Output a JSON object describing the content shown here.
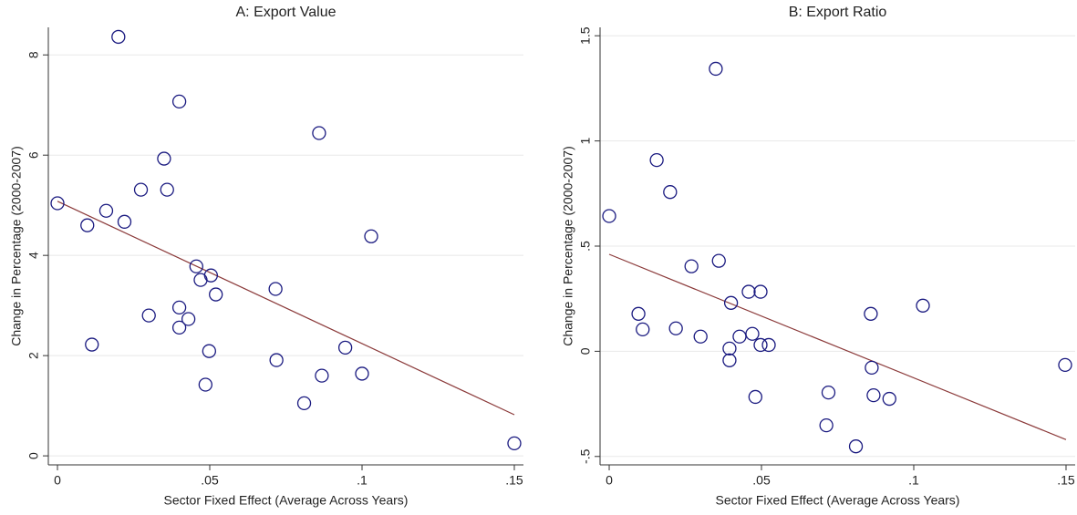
{
  "chart_data": [
    {
      "type": "scatter",
      "title": "A: Export Value",
      "x_label": "Sector Fixed Effect (Average Across Years)",
      "y_label": "Change in Percentage (2000-2007)",
      "xlim": [
        -0.003,
        0.153
      ],
      "ylim": [
        -0.18,
        8.55
      ],
      "xticks": [
        0,
        {
          "value": 0.05,
          "label": ".05"
        },
        {
          "value": 0.1,
          "label": ".1"
        },
        {
          "value": 0.15,
          "label": ".15"
        }
      ],
      "yticks": [
        0,
        2,
        4,
        6,
        8
      ],
      "grid": true,
      "series": [
        {
          "color": "#1a1a80",
          "x": [
            0.02,
            0.04,
            0.0859,
            0.035,
            0.0274,
            0.036,
            0,
            0.016,
            0.022,
            0.0098,
            0.103,
            0.0456,
            0.047,
            0.0504,
            0.0716,
            0.052,
            0.04,
            0.03,
            0.043,
            0.04,
            0.0113,
            0.0498,
            0.0945,
            0.0719,
            0.0868,
            0.1,
            0.0486,
            0.081,
            0.15
          ],
          "values": [
            8.36,
            7.07,
            6.44,
            5.93,
            5.31,
            5.31,
            5.04,
            4.89,
            4.67,
            4.6,
            4.38,
            3.78,
            3.51,
            3.6,
            3.33,
            3.22,
            2.96,
            2.8,
            2.73,
            2.56,
            2.22,
            2.09,
            2.16,
            1.91,
            1.6,
            1.64,
            1.42,
            1.05,
            0.25
          ]
        }
      ],
      "fit_line": {
        "color": "#8b3a3a",
        "x": [
          0,
          0.15
        ],
        "values": [
          5.08,
          0.82
        ]
      }
    },
    {
      "type": "scatter",
      "title": "B: Export Ratio",
      "x_label": "Sector Fixed Effect (Average Across Years)",
      "y_label": "Change in Percentage (2000-2007)",
      "xlim": [
        -0.003,
        0.153
      ],
      "ylim": [
        -0.54,
        1.54
      ],
      "xticks": [
        0,
        {
          "value": 0.05,
          "label": ".05"
        },
        {
          "value": 0.1,
          "label": ".1"
        },
        {
          "value": 0.15,
          "label": ".15"
        }
      ],
      "yticks": [
        {
          "value": -0.5,
          "label": "-.5"
        },
        0,
        {
          "value": 0.5,
          "label": ".5"
        },
        1,
        1.5
      ],
      "grid": true,
      "series": [
        {
          "color": "#1a1a80",
          "x": [
            0.035,
            0.0156,
            0.02,
            0,
            0.036,
            0.027,
            0.0458,
            0.0497,
            0.103,
            0.0096,
            0.0859,
            0.04,
            0.011,
            0.0219,
            0.03,
            0.0428,
            0.047,
            0.0497,
            0.0524,
            0.0395,
            0.0395,
            0.1497,
            0.0862,
            0.048,
            0.072,
            0.0868,
            0.092,
            0.0713,
            0.081
          ],
          "values": [
            1.343,
            0.909,
            0.757,
            0.643,
            0.43,
            0.404,
            0.283,
            0.283,
            0.217,
            0.178,
            0.178,
            0.23,
            0.104,
            0.109,
            0.07,
            0.07,
            0.083,
            0.03,
            0.03,
            0.013,
            -0.043,
            -0.065,
            -0.078,
            -0.217,
            -0.196,
            -0.209,
            -0.226,
            -0.352,
            -0.452
          ]
        }
      ],
      "fit_line": {
        "color": "#8b3a3a",
        "x": [
          0,
          0.15
        ],
        "values": [
          0.461,
          -0.42
        ]
      }
    }
  ]
}
